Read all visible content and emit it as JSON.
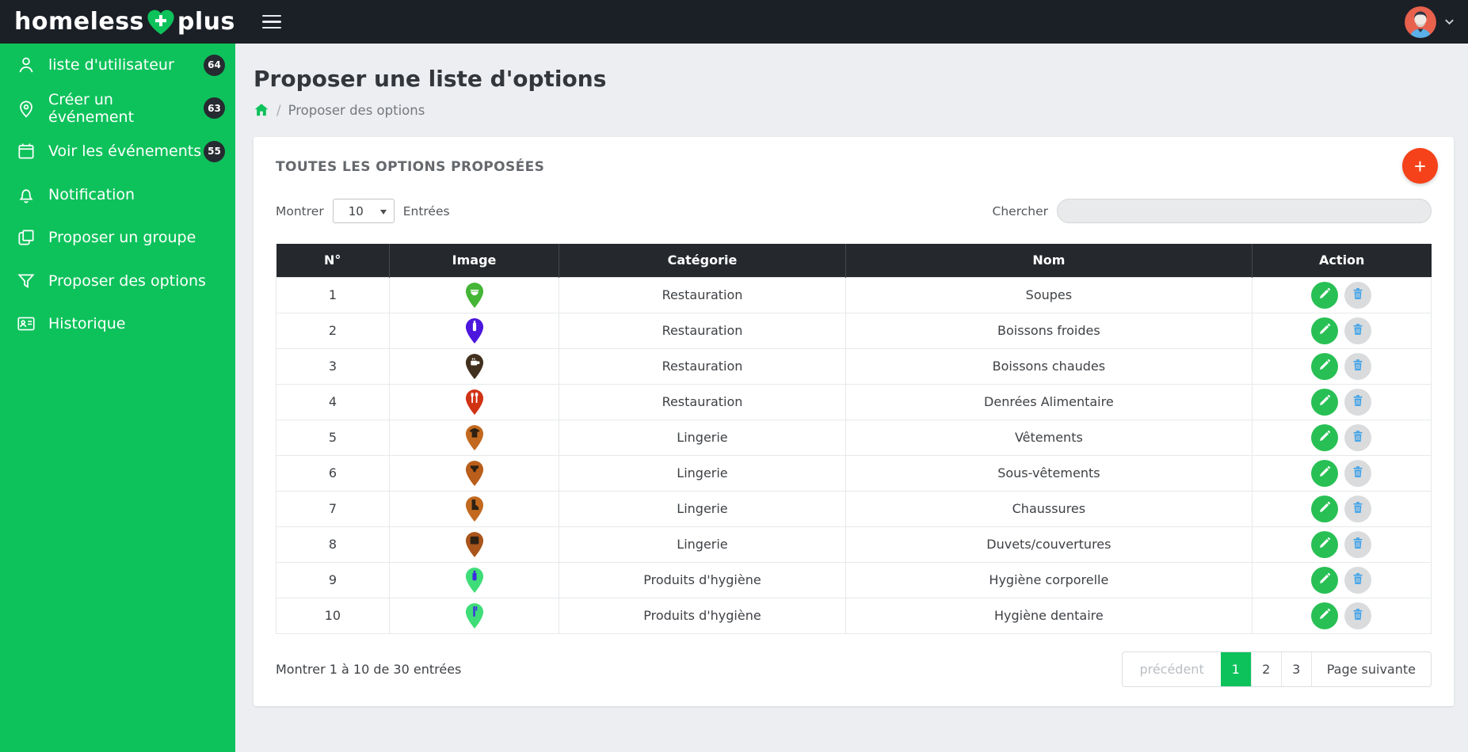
{
  "navbar": {
    "brand": {
      "part1": "homeless",
      "part2": "plus"
    },
    "heart_icon": "heart-plus-icon",
    "menu_icon": "hamburger-menu-icon"
  },
  "sidebar": {
    "items": [
      {
        "id": "users",
        "label": "liste d'utilisateur",
        "icon": "user-icon",
        "badge": "64"
      },
      {
        "id": "create-event",
        "label": "Créer un événement",
        "icon": "map-pin-icon",
        "badge": "63"
      },
      {
        "id": "view-events",
        "label": "Voir les événements",
        "icon": "calendar-icon",
        "badge": "55"
      },
      {
        "id": "notification",
        "label": "Notification",
        "icon": "bell-icon",
        "badge": null
      },
      {
        "id": "propose-group",
        "label": "Proposer un groupe",
        "icon": "layers-icon",
        "badge": null
      },
      {
        "id": "propose-options",
        "label": "Proposer des options",
        "icon": "filter-icon",
        "badge": null
      },
      {
        "id": "history",
        "label": "Historique",
        "icon": "id-card-icon",
        "badge": null
      }
    ]
  },
  "page": {
    "title": "Proposer une liste d'options",
    "breadcrumb": {
      "separator": "/",
      "current": "Proposer des options"
    }
  },
  "card": {
    "title": "TOUTES LES OPTIONS PROPOSÉES",
    "add_button_label": "+",
    "length_before": "Montrer",
    "length_value": "10",
    "length_after": "Entrées",
    "search_label": "Chercher",
    "search_value": ""
  },
  "table": {
    "headers": [
      "N°",
      "Image",
      "Catégorie",
      "Nom",
      "Action"
    ],
    "rows": [
      {
        "num": "1",
        "icon": "pin-soup-icon",
        "pin_color": "#45b536",
        "glyph": "soup",
        "glyph_color": "#ffffff",
        "category": "Restauration",
        "name": "Soupes"
      },
      {
        "num": "2",
        "icon": "pin-bottle-icon",
        "pin_color": "#4c16dd",
        "glyph": "bottle",
        "glyph_color": "#ffffff",
        "category": "Restauration",
        "name": "Boissons froides"
      },
      {
        "num": "3",
        "icon": "pin-coffee-icon",
        "pin_color": "#42301f",
        "glyph": "coffee",
        "glyph_color": "#ffffff",
        "category": "Restauration",
        "name": "Boissons chaudes"
      },
      {
        "num": "4",
        "icon": "pin-cutlery-icon",
        "pin_color": "#d03214",
        "glyph": "cutlery",
        "glyph_color": "#ffffff",
        "category": "Restauration",
        "name": "Denrées Alimentaire"
      },
      {
        "num": "5",
        "icon": "pin-tshirt-icon",
        "pin_color": "#c2691f",
        "glyph": "tshirt",
        "glyph_color": "#2e2013",
        "category": "Lingerie",
        "name": "Vêtements"
      },
      {
        "num": "6",
        "icon": "pin-underwear-icon",
        "pin_color": "#b95e1b",
        "glyph": "underwear",
        "glyph_color": "#2e2013",
        "category": "Lingerie",
        "name": "Sous-vêtements"
      },
      {
        "num": "7",
        "icon": "pin-shoes-icon",
        "pin_color": "#c2691f",
        "glyph": "shoes",
        "glyph_color": "#2e2013",
        "category": "Lingerie",
        "name": "Chaussures"
      },
      {
        "num": "8",
        "icon": "pin-blanket-icon",
        "pin_color": "#a9551b",
        "glyph": "blanket",
        "glyph_color": "#2e2013",
        "category": "Lingerie",
        "name": "Duvets/couvertures"
      },
      {
        "num": "9",
        "icon": "pin-soap-icon",
        "pin_color": "#3fdd78",
        "glyph": "soap",
        "glyph_color": "#3b30e0",
        "category": "Produits d'hygiène",
        "name": "Hygiène corporelle"
      },
      {
        "num": "10",
        "icon": "pin-toothbrush-icon",
        "pin_color": "#3fdd78",
        "glyph": "toothbrush",
        "glyph_color": "#3b30e0",
        "category": "Produits d'hygiène",
        "name": "Hygiène dentaire"
      }
    ]
  },
  "footer": {
    "info": "Montrer 1 à 10 de 30 entrées",
    "pagination": {
      "prev": "précédent",
      "pages": [
        "1",
        "2",
        "3"
      ],
      "active": "1",
      "next": "Page suivante"
    }
  },
  "colors": {
    "accent_green": "#0dc25b",
    "navbar_dark": "#1b1f26",
    "table_header_dark": "#25292d",
    "add_button_red": "#f5421a",
    "edit_button_green": "#28c054",
    "delete_icon_blue": "#3aa0e8",
    "avatar_bg_orange": "#e8614d"
  }
}
